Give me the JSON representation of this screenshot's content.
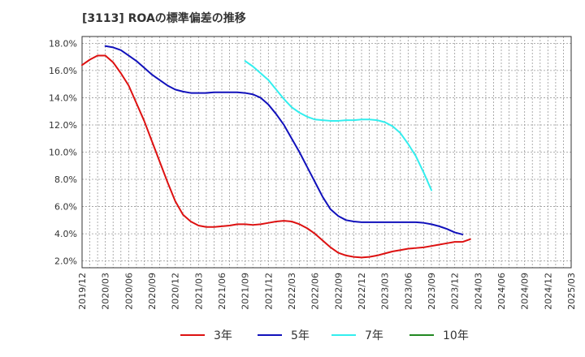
{
  "chart_data": {
    "type": "line",
    "title": "[3113]  ROAの標準偏差の推移",
    "xlabel": "",
    "ylabel": "",
    "ylim": [
      1.5,
      18.5
    ],
    "y_ticks": [
      2.0,
      4.0,
      6.0,
      8.0,
      10.0,
      12.0,
      14.0,
      16.0,
      18.0
    ],
    "y_tick_labels": [
      "2.0%",
      "4.0%",
      "6.0%",
      "8.0%",
      "10.0%",
      "12.0%",
      "14.0%",
      "16.0%",
      "18.0%"
    ],
    "x_tick_labels": [
      "2019/12",
      "2020/03",
      "2020/06",
      "2020/09",
      "2020/12",
      "2021/03",
      "2021/06",
      "2021/09",
      "2021/12",
      "2022/03",
      "2022/06",
      "2022/09",
      "2022/12",
      "2023/03",
      "2023/06",
      "2023/09",
      "2023/12",
      "2024/03",
      "2024/06",
      "2024/09",
      "2024/12",
      "2025/03"
    ],
    "grid": true,
    "legend_position": "bottom",
    "series": [
      {
        "name": "3年",
        "color": "#dd1111",
        "start_index": 0,
        "values": [
          16.4,
          16.8,
          17.1,
          17.1,
          16.6,
          15.8,
          14.9,
          13.6,
          12.3,
          10.8,
          9.3,
          7.8,
          6.4,
          5.4,
          4.9,
          4.6,
          4.5,
          4.5,
          4.55,
          4.6,
          4.7,
          4.7,
          4.65,
          4.7,
          4.8,
          4.9,
          4.95,
          4.9,
          4.7,
          4.4,
          4.0,
          3.5,
          3.0,
          2.6,
          2.4,
          2.3,
          2.25,
          2.3,
          2.4,
          2.55,
          2.7,
          2.8,
          2.9,
          2.95,
          3.0,
          3.1,
          3.2,
          3.3,
          3.4,
          3.4,
          3.6
        ]
      },
      {
        "name": "5年",
        "color": "#1111bb",
        "start_index": 3,
        "values": [
          17.8,
          17.7,
          17.5,
          17.1,
          16.7,
          16.2,
          15.7,
          15.3,
          14.9,
          14.6,
          14.45,
          14.35,
          14.35,
          14.35,
          14.4,
          14.4,
          14.4,
          14.4,
          14.35,
          14.25,
          14.0,
          13.5,
          12.8,
          12.0,
          11.0,
          10.0,
          8.9,
          7.8,
          6.7,
          5.8,
          5.3,
          5.0,
          4.9,
          4.85,
          4.85,
          4.85,
          4.85,
          4.85,
          4.85,
          4.85,
          4.85,
          4.8,
          4.7,
          4.55,
          4.35,
          4.1,
          3.95
        ]
      },
      {
        "name": "7年",
        "color": "#33eeee",
        "start_index": 21,
        "values": [
          16.7,
          16.3,
          15.8,
          15.3,
          14.6,
          13.9,
          13.3,
          12.9,
          12.6,
          12.4,
          12.35,
          12.3,
          12.3,
          12.35,
          12.35,
          12.4,
          12.4,
          12.35,
          12.2,
          11.9,
          11.4,
          10.6,
          9.7,
          8.5,
          7.2
        ]
      },
      {
        "name": "10年",
        "color": "#228822",
        "start_index": 0,
        "values": []
      }
    ]
  }
}
